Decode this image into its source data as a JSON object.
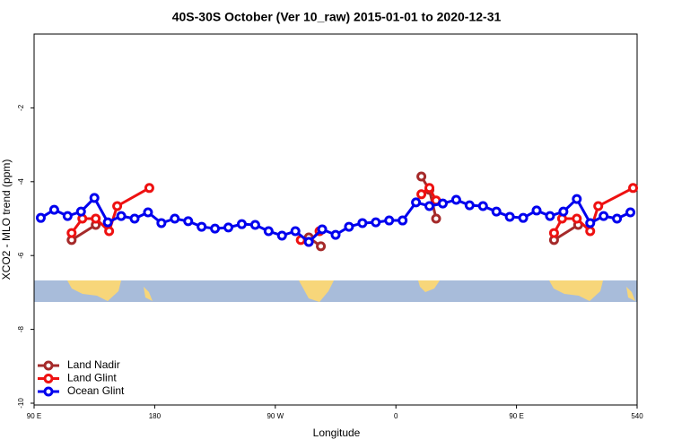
{
  "chart_data": {
    "type": "line",
    "title": "40S-30S October (Ver 10_raw)   2015-01-01 to 2020-12-31",
    "x_label": "Longitude",
    "y_label": "XCO2 - MLO trend (ppm)",
    "xlim": [
      90,
      540
    ],
    "xticks": [
      {
        "value": 90,
        "label": "90 E"
      },
      180,
      {
        "value": 270,
        "label": "90 W"
      },
      {
        "value": 360,
        "label": "0"
      },
      {
        "value": 450,
        "label": "90 E"
      },
      540
    ],
    "ylim": [
      -10,
      0
    ],
    "yticks": [
      -2,
      -4,
      -6,
      -8,
      -10
    ],
    "legend": "bottom-left",
    "series": [
      {
        "name": "Land Nadir",
        "color": "#a52a2a",
        "x": [
          118,
          136,
          null,
          295,
          304,
          null,
          379,
          385,
          390,
          null,
          478,
          496
        ],
        "values": [
          -5.58,
          -5.17,
          null,
          -5.51,
          -5.75,
          null,
          -3.86,
          -4.22,
          -5.0,
          null,
          -5.58,
          -5.17
        ]
      },
      {
        "name": "Land Glint",
        "color": "#ee1111",
        "x": [
          118,
          126,
          136,
          146,
          152,
          176,
          null,
          289,
          295,
          303,
          null,
          379,
          385,
          390,
          null,
          478,
          484,
          495,
          505,
          511,
          537
        ],
        "values": [
          -5.39,
          -5.0,
          -5.0,
          -5.34,
          -4.66,
          -4.17,
          null,
          -5.58,
          -5.63,
          -5.34,
          null,
          -4.34,
          -4.17,
          -4.51,
          null,
          -5.39,
          -5.0,
          -5.0,
          -5.34,
          -4.66,
          -4.17
        ]
      },
      {
        "name": "Ocean Glint",
        "color": "#0000ee",
        "x": [
          95,
          105,
          115,
          125,
          135,
          145,
          155,
          165,
          175,
          185,
          195,
          205,
          215,
          225,
          235,
          245,
          255,
          265,
          275,
          285,
          295,
          305,
          315,
          325,
          335,
          345,
          355,
          365,
          375,
          385,
          395,
          405,
          415,
          425,
          435,
          445,
          455,
          465,
          475,
          485,
          495,
          505,
          515,
          525,
          535
        ],
        "values": [
          -4.98,
          -4.76,
          -4.93,
          -4.81,
          -4.44,
          -5.1,
          -4.93,
          -5.0,
          -4.83,
          -5.12,
          -5.0,
          -5.07,
          -5.22,
          -5.27,
          -5.24,
          -5.15,
          -5.17,
          -5.34,
          -5.46,
          -5.34,
          -5.63,
          -5.29,
          -5.44,
          -5.22,
          -5.12,
          -5.1,
          -5.05,
          -5.05,
          -4.56,
          -4.66,
          -4.59,
          -4.49,
          -4.64,
          -4.66,
          -4.81,
          -4.95,
          -4.98,
          -4.78,
          -4.93,
          -4.81,
          -4.47,
          -5.12,
          -4.93,
          -5.0,
          -4.83
        ]
      }
    ]
  }
}
